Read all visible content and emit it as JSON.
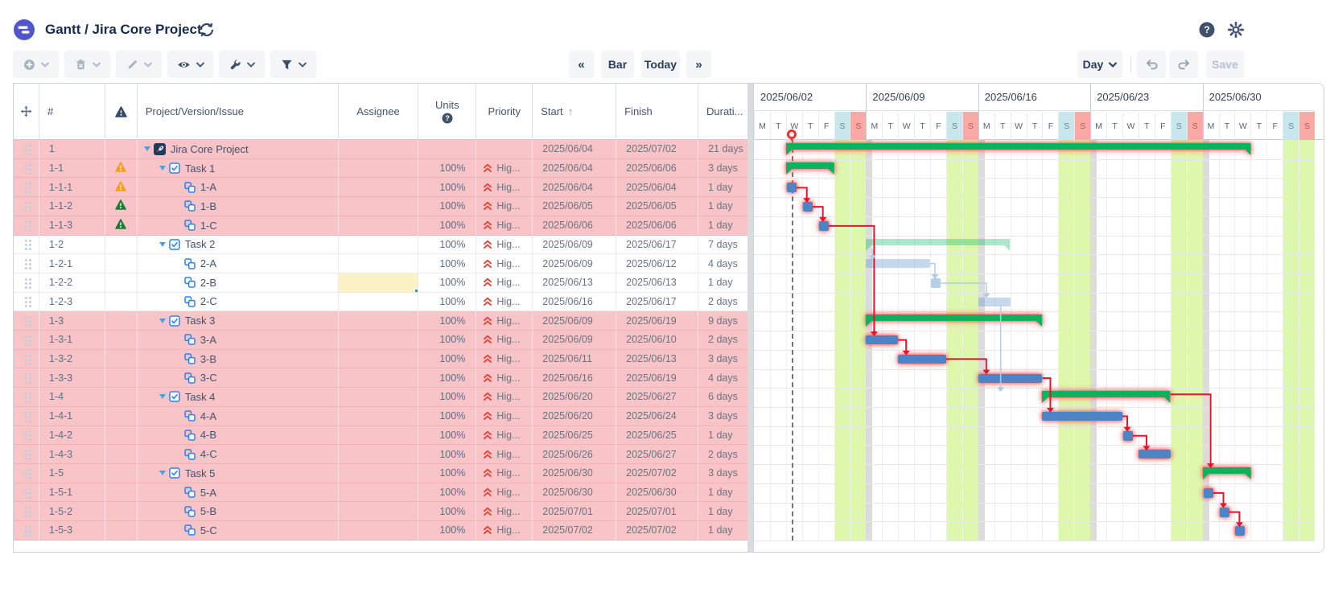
{
  "header": {
    "title": "Gantt / Jira Core Project"
  },
  "toolbar": {
    "nav_back": "«",
    "bar_label": "Bar",
    "today_label": "Today",
    "nav_fwd": "»",
    "zoom_label": "Day",
    "save_label": "Save"
  },
  "table": {
    "columns": {
      "num": "#",
      "issue": "Project/Version/Issue",
      "assignee": "Assignee",
      "units": "Units",
      "priority": "Priority",
      "start": "Start",
      "finish": "Finish",
      "duration": "Durati..."
    },
    "rows": [
      {
        "num": "1",
        "warn": null,
        "level": 0,
        "expander": true,
        "icon": "project",
        "label": "Jira Core Project",
        "units": "",
        "priority": "",
        "start": "2025/06/04",
        "finish": "2025/07/02",
        "duration": "21 days",
        "critical": true,
        "selected": false
      },
      {
        "num": "1-1",
        "warn": "orange",
        "level": 1,
        "expander": true,
        "icon": "task",
        "label": "Task 1",
        "units": "100%",
        "priority": "Hig...",
        "start": "2025/06/04",
        "finish": "2025/06/06",
        "duration": "3 days",
        "critical": true,
        "selected": false
      },
      {
        "num": "1-1-1",
        "warn": "orange",
        "level": 2,
        "expander": false,
        "icon": "subtask",
        "label": "1-A",
        "units": "100%",
        "priority": "Hig...",
        "start": "2025/06/04",
        "finish": "2025/06/04",
        "duration": "1 day",
        "critical": true,
        "selected": false
      },
      {
        "num": "1-1-2",
        "warn": "green",
        "level": 2,
        "expander": false,
        "icon": "subtask",
        "label": "1-B",
        "units": "100%",
        "priority": "Hig...",
        "start": "2025/06/05",
        "finish": "2025/06/05",
        "duration": "1 day",
        "critical": true,
        "selected": false
      },
      {
        "num": "1-1-3",
        "warn": "green",
        "level": 2,
        "expander": false,
        "icon": "subtask",
        "label": "1-C",
        "units": "100%",
        "priority": "Hig...",
        "start": "2025/06/06",
        "finish": "2025/06/06",
        "duration": "1 day",
        "critical": true,
        "selected": false
      },
      {
        "num": "1-2",
        "warn": null,
        "level": 1,
        "expander": true,
        "icon": "task",
        "label": "Task 2",
        "units": "100%",
        "priority": "Hig...",
        "start": "2025/06/09",
        "finish": "2025/06/17",
        "duration": "7 days",
        "critical": false,
        "selected": false
      },
      {
        "num": "1-2-1",
        "warn": null,
        "level": 2,
        "expander": false,
        "icon": "subtask",
        "label": "2-A",
        "units": "100%",
        "priority": "Hig...",
        "start": "2025/06/09",
        "finish": "2025/06/12",
        "duration": "4 days",
        "critical": false,
        "selected": false
      },
      {
        "num": "1-2-2",
        "warn": null,
        "level": 2,
        "expander": false,
        "icon": "subtask",
        "label": "2-B",
        "units": "100%",
        "priority": "Hig...",
        "start": "2025/06/13",
        "finish": "2025/06/13",
        "duration": "1 day",
        "critical": false,
        "selected": true
      },
      {
        "num": "1-2-3",
        "warn": null,
        "level": 2,
        "expander": false,
        "icon": "subtask",
        "label": "2-C",
        "units": "100%",
        "priority": "Hig...",
        "start": "2025/06/16",
        "finish": "2025/06/17",
        "duration": "2 days",
        "critical": false,
        "selected": false
      },
      {
        "num": "1-3",
        "warn": null,
        "level": 1,
        "expander": true,
        "icon": "task",
        "label": "Task 3",
        "units": "100%",
        "priority": "Hig...",
        "start": "2025/06/09",
        "finish": "2025/06/19",
        "duration": "9 days",
        "critical": true,
        "selected": false
      },
      {
        "num": "1-3-1",
        "warn": null,
        "level": 2,
        "expander": false,
        "icon": "subtask",
        "label": "3-A",
        "units": "100%",
        "priority": "Hig...",
        "start": "2025/06/09",
        "finish": "2025/06/10",
        "duration": "2 days",
        "critical": true,
        "selected": false
      },
      {
        "num": "1-3-2",
        "warn": null,
        "level": 2,
        "expander": false,
        "icon": "subtask",
        "label": "3-B",
        "units": "100%",
        "priority": "Hig...",
        "start": "2025/06/11",
        "finish": "2025/06/13",
        "duration": "3 days",
        "critical": true,
        "selected": false
      },
      {
        "num": "1-3-3",
        "warn": null,
        "level": 2,
        "expander": false,
        "icon": "subtask",
        "label": "3-C",
        "units": "100%",
        "priority": "Hig...",
        "start": "2025/06/16",
        "finish": "2025/06/19",
        "duration": "4 days",
        "critical": true,
        "selected": false
      },
      {
        "num": "1-4",
        "warn": null,
        "level": 1,
        "expander": true,
        "icon": "task",
        "label": "Task 4",
        "units": "100%",
        "priority": "Hig...",
        "start": "2025/06/20",
        "finish": "2025/06/27",
        "duration": "6 days",
        "critical": true,
        "selected": false
      },
      {
        "num": "1-4-1",
        "warn": null,
        "level": 2,
        "expander": false,
        "icon": "subtask",
        "label": "4-A",
        "units": "100%",
        "priority": "Hig...",
        "start": "2025/06/20",
        "finish": "2025/06/24",
        "duration": "3 days",
        "critical": true,
        "selected": false
      },
      {
        "num": "1-4-2",
        "warn": null,
        "level": 2,
        "expander": false,
        "icon": "subtask",
        "label": "4-B",
        "units": "100%",
        "priority": "Hig...",
        "start": "2025/06/25",
        "finish": "2025/06/25",
        "duration": "1 day",
        "critical": true,
        "selected": false
      },
      {
        "num": "1-4-3",
        "warn": null,
        "level": 2,
        "expander": false,
        "icon": "subtask",
        "label": "4-C",
        "units": "100%",
        "priority": "Hig...",
        "start": "2025/06/26",
        "finish": "2025/06/27",
        "duration": "2 days",
        "critical": true,
        "selected": false
      },
      {
        "num": "1-5",
        "warn": null,
        "level": 1,
        "expander": true,
        "icon": "task",
        "label": "Task 5",
        "units": "100%",
        "priority": "Hig...",
        "start": "2025/06/30",
        "finish": "2025/07/02",
        "duration": "3 days",
        "critical": true,
        "selected": false
      },
      {
        "num": "1-5-1",
        "warn": null,
        "level": 2,
        "expander": false,
        "icon": "subtask",
        "label": "5-A",
        "units": "100%",
        "priority": "Hig...",
        "start": "2025/06/30",
        "finish": "2025/06/30",
        "duration": "1 day",
        "critical": true,
        "selected": false
      },
      {
        "num": "1-5-2",
        "warn": null,
        "level": 2,
        "expander": false,
        "icon": "subtask",
        "label": "5-B",
        "units": "100%",
        "priority": "Hig...",
        "start": "2025/07/01",
        "finish": "2025/07/01",
        "duration": "1 day",
        "critical": true,
        "selected": false
      },
      {
        "num": "1-5-3",
        "warn": null,
        "level": 2,
        "expander": false,
        "icon": "subtask",
        "label": "5-C",
        "units": "100%",
        "priority": "Hig...",
        "start": "2025/07/02",
        "finish": "2025/07/02",
        "duration": "1 day",
        "critical": true,
        "selected": false
      }
    ]
  },
  "gantt": {
    "weeks": [
      "2025/06/02",
      "2025/06/09",
      "2025/06/16",
      "2025/06/23",
      "2025/06/30"
    ],
    "day_letters": [
      "M",
      "T",
      "W",
      "T",
      "F",
      "S",
      "S"
    ],
    "weekends": [
      [
        5,
        7
      ],
      [
        12,
        14
      ],
      [
        19,
        21
      ],
      [
        26,
        28
      ],
      [
        33,
        35
      ]
    ],
    "today_day": 2.36,
    "bars": [
      {
        "id": "1",
        "row": 0,
        "type": "summary",
        "start": 2,
        "end": 31,
        "critical": true
      },
      {
        "id": "1-1",
        "row": 1,
        "type": "summary",
        "start": 2,
        "end": 5,
        "critical": true
      },
      {
        "id": "1-1-1",
        "row": 2,
        "type": "square",
        "start": 2,
        "end": 3,
        "critical": true
      },
      {
        "id": "1-1-2",
        "row": 3,
        "type": "square",
        "start": 3,
        "end": 4,
        "critical": true
      },
      {
        "id": "1-1-3",
        "row": 4,
        "type": "square",
        "start": 4,
        "end": 5,
        "critical": true
      },
      {
        "id": "1-2",
        "row": 5,
        "type": "summary",
        "start": 7,
        "end": 16,
        "critical": false
      },
      {
        "id": "1-2-1",
        "row": 6,
        "type": "bar",
        "start": 7,
        "end": 11,
        "critical": false
      },
      {
        "id": "1-2-2",
        "row": 7,
        "type": "square",
        "start": 11,
        "end": 12,
        "critical": false
      },
      {
        "id": "1-2-3",
        "row": 8,
        "type": "bar",
        "start": 14,
        "end": 16,
        "critical": false
      },
      {
        "id": "1-3",
        "row": 9,
        "type": "summary",
        "start": 7,
        "end": 18,
        "critical": true
      },
      {
        "id": "1-3-1",
        "row": 10,
        "type": "bar",
        "start": 7,
        "end": 9,
        "critical": true
      },
      {
        "id": "1-3-2",
        "row": 11,
        "type": "bar",
        "start": 9,
        "end": 12,
        "critical": true
      },
      {
        "id": "1-3-3",
        "row": 12,
        "type": "bar",
        "start": 14,
        "end": 18,
        "critical": true
      },
      {
        "id": "1-4",
        "row": 13,
        "type": "summary",
        "start": 18,
        "end": 26,
        "critical": true
      },
      {
        "id": "1-4-1",
        "row": 14,
        "type": "bar",
        "start": 18,
        "end": 23,
        "critical": true
      },
      {
        "id": "1-4-2",
        "row": 15,
        "type": "square",
        "start": 23,
        "end": 24,
        "critical": true
      },
      {
        "id": "1-4-3",
        "row": 16,
        "type": "bar",
        "start": 24,
        "end": 26,
        "critical": true
      },
      {
        "id": "1-5",
        "row": 17,
        "type": "summary",
        "start": 28,
        "end": 31,
        "critical": true
      },
      {
        "id": "1-5-1",
        "row": 18,
        "type": "square",
        "start": 28,
        "end": 29,
        "critical": true
      },
      {
        "id": "1-5-2",
        "row": 19,
        "type": "square",
        "start": 29,
        "end": 30,
        "critical": true
      },
      {
        "id": "1-5-3",
        "row": 20,
        "type": "square",
        "start": 30,
        "end": 31,
        "critical": true
      }
    ],
    "deps": [
      {
        "from": "1-1-1",
        "to": "1-1-2",
        "critical": true,
        "mode": "elbow"
      },
      {
        "from": "1-1-2",
        "to": "1-1-3",
        "critical": true,
        "mode": "elbow"
      },
      {
        "from": "1-1-3",
        "to": "1-3-1",
        "critical": true,
        "mode": "elbow"
      },
      {
        "from": "1-3-1",
        "to": "1-3-2",
        "critical": true,
        "mode": "elbow"
      },
      {
        "from": "1-3-2",
        "to": "1-3-3",
        "critical": true,
        "mode": "elbow"
      },
      {
        "from": "1-3-3",
        "to": "1-4-1",
        "critical": true,
        "mode": "elbow"
      },
      {
        "from": "1-4-1",
        "to": "1-4-2",
        "critical": true,
        "mode": "elbow"
      },
      {
        "from": "1-4-2",
        "to": "1-4-3",
        "critical": true,
        "mode": "elbow"
      },
      {
        "from": "1-4",
        "to": "1-5",
        "critical": true,
        "mode": "elbow"
      },
      {
        "from": "1-5-1",
        "to": "1-5-2",
        "critical": true,
        "mode": "elbow"
      },
      {
        "from": "1-5-2",
        "to": "1-5-3",
        "critical": true,
        "mode": "elbow"
      },
      {
        "from": "1-2",
        "to": "1-2-1",
        "critical": false,
        "mode": "parent"
      },
      {
        "from": "1-2-1",
        "to": "1-2-2",
        "critical": false,
        "mode": "elbow"
      },
      {
        "from": "1-2-2",
        "to": "1-2-3",
        "critical": false,
        "mode": "elbow"
      },
      {
        "from": "1-2-3",
        "to": "1-4",
        "critical": false,
        "mode": "drop"
      }
    ]
  },
  "colors": {
    "accent_purple": "#5157c8",
    "navy": "#172b4d",
    "critical_row": "#f9c4c7",
    "summary_green": "#0db25f",
    "task_blue": "#4c85c6",
    "weekend_green": "#ddf8ac",
    "sat_header": "#c8e7ec",
    "sun_header": "#fba9a6",
    "dep_red": "#e8132b",
    "dep_light": "#aecdea",
    "warn_orange": "#f9a01b",
    "warn_green": "#1d7d36",
    "priority_red": "#e2483d",
    "selected_cell": "#fdf2c3"
  }
}
